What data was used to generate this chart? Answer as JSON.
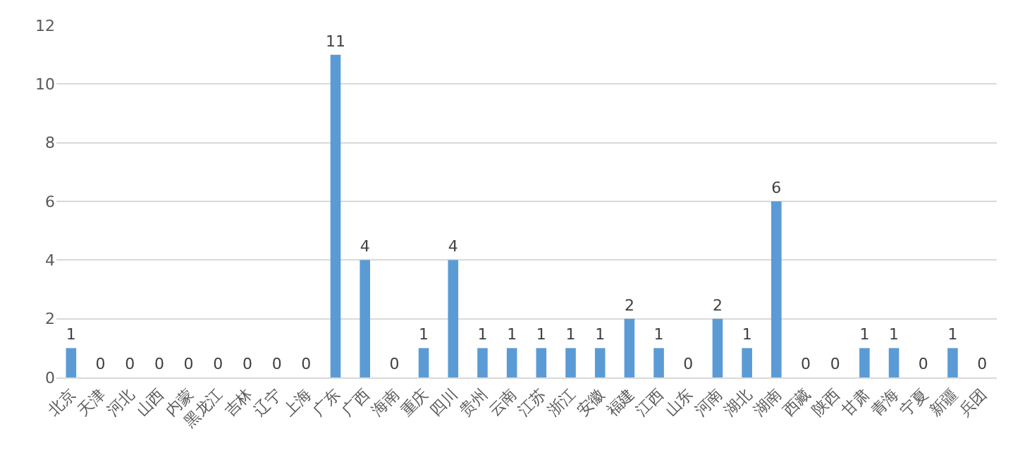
{
  "chart_data": {
    "type": "bar",
    "categories": [
      "北京",
      "天津",
      "河北",
      "山西",
      "内蒙",
      "黑龙江",
      "吉林",
      "辽宁",
      "上海",
      "广东",
      "广西",
      "海南",
      "重庆",
      "四川",
      "贵州",
      "云南",
      "江苏",
      "浙江",
      "安徽",
      "福建",
      "江西",
      "山东",
      "河南",
      "湖北",
      "湖南",
      "西藏",
      "陕西",
      "甘肃",
      "青海",
      "宁夏",
      "新疆",
      "兵团"
    ],
    "values": [
      1,
      0,
      0,
      0,
      0,
      0,
      0,
      0,
      0,
      11,
      4,
      0,
      1,
      4,
      1,
      1,
      1,
      1,
      1,
      2,
      1,
      0,
      2,
      1,
      6,
      0,
      0,
      1,
      1,
      0,
      1,
      0
    ],
    "color": "#5b9bd5",
    "ylim": [
      0,
      12
    ],
    "yticks": [
      0,
      2,
      4,
      6,
      8,
      10,
      12
    ],
    "grid": "y",
    "data_labels": true
  }
}
